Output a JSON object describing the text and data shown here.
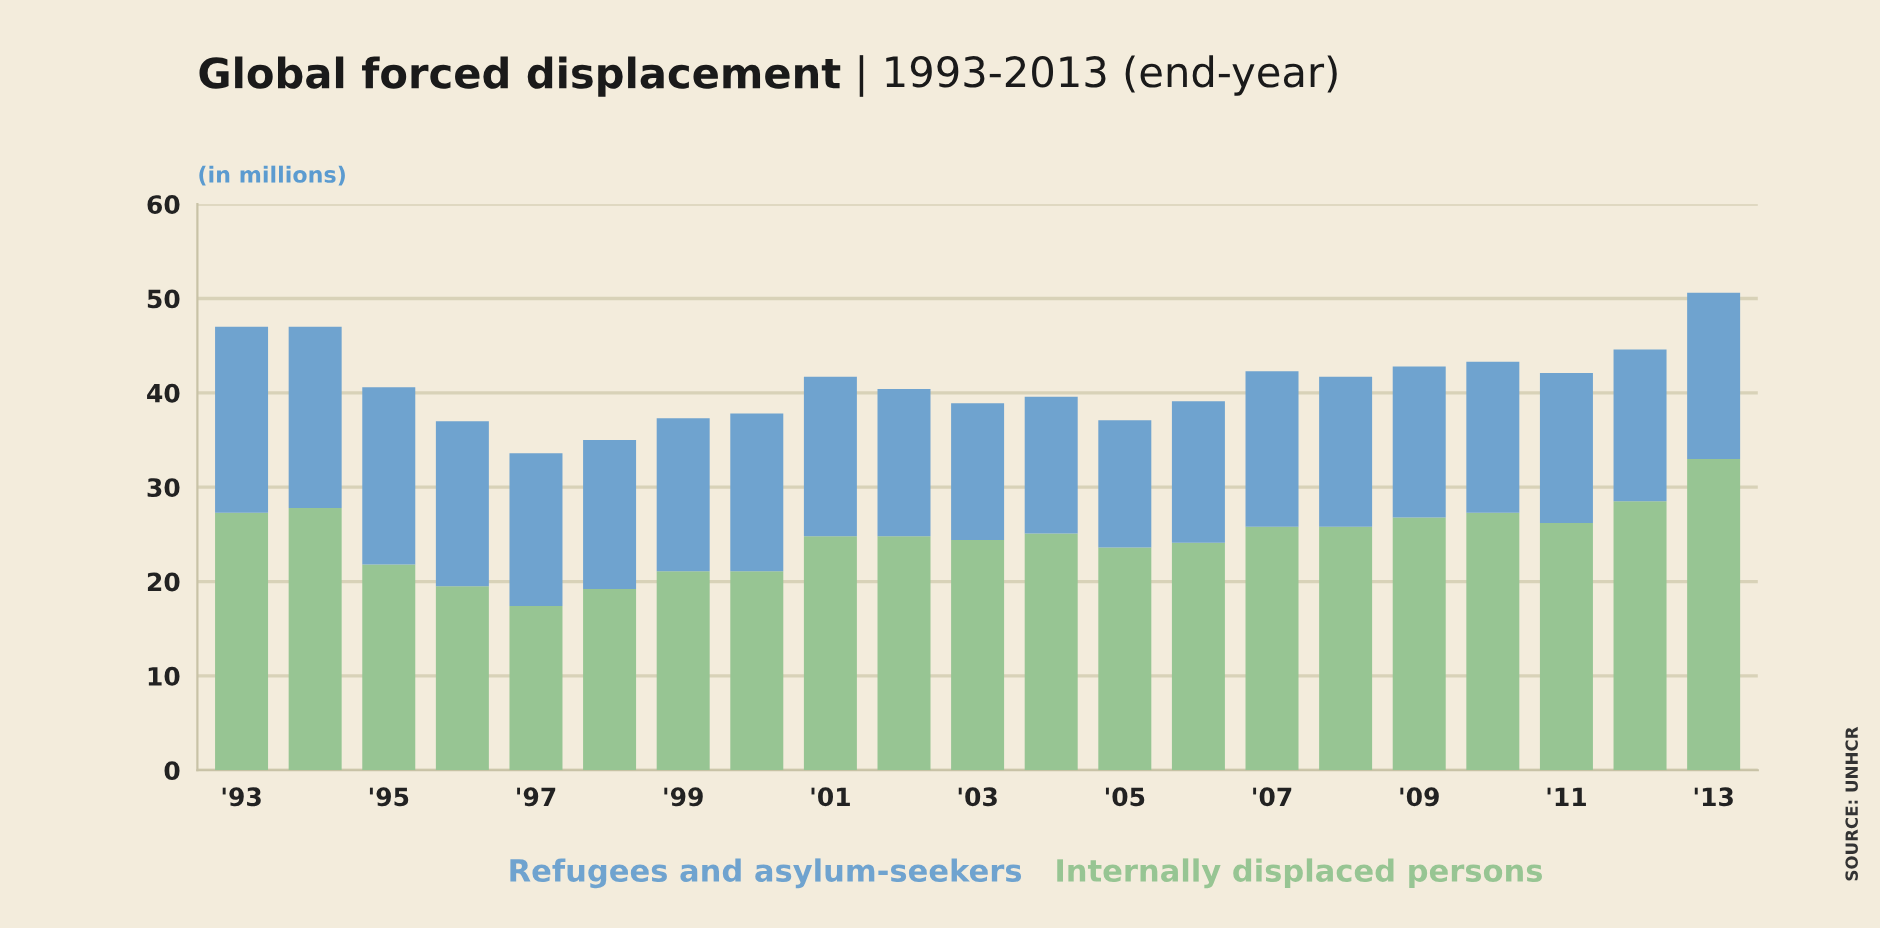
{
  "chart_data": {
    "type": "bar",
    "title": "Global forced displacement",
    "subtitle": "| 1993-2013 (end-year)",
    "ylabel": "(in millions)",
    "categories": [
      "'93",
      null,
      "'95",
      null,
      "'97",
      null,
      "'99",
      null,
      "'01",
      null,
      "'03",
      null,
      "'05",
      null,
      "'07",
      null,
      "'09",
      null,
      "'11",
      null,
      "'13"
    ],
    "stacked": true,
    "series": [
      {
        "name": "Internally displaced persons",
        "color": "#97c593",
        "values": [
          27.3,
          27.8,
          21.8,
          19.5,
          17.4,
          19.2,
          21.1,
          21.1,
          24.8,
          24.8,
          24.4,
          25.1,
          23.6,
          24.1,
          25.8,
          25.8,
          26.8,
          27.3,
          26.2,
          28.5,
          33.0
        ]
      },
      {
        "name": "Refugees and asylum-seekers",
        "color": "#6fa3cf",
        "values": [
          19.7,
          19.2,
          18.8,
          17.5,
          16.2,
          15.8,
          16.2,
          16.7,
          16.9,
          15.6,
          14.5,
          14.5,
          13.5,
          15.0,
          16.5,
          15.9,
          16.0,
          16.0,
          15.9,
          16.1,
          17.6
        ]
      }
    ],
    "ylim": [
      0,
      60
    ],
    "yticks": [
      0,
      10,
      20,
      30,
      40,
      50,
      60
    ],
    "grid": "y",
    "legend": "bottom",
    "annotations": [
      "SOURCE: UNHCR"
    ]
  }
}
